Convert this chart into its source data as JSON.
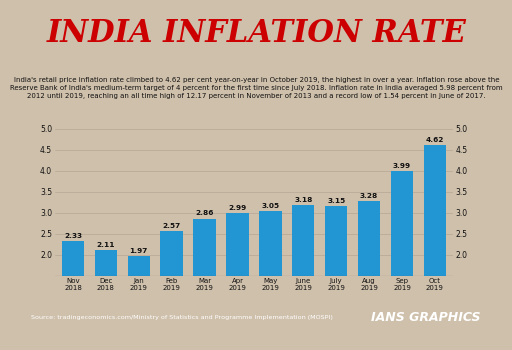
{
  "title": "INDIA INFLATION RATE",
  "subtitle_lines": [
    "India's retail price inflation rate climbed to 4.62 per cent year-on-year in October 2019, the highest in over a year. Inflation rose above the",
    "Reserve Bank of India's medium-term target of 4 percent for the first time since July 2018. Inflation rate in India averaged 5.98 percent from",
    "2012 until 2019, reaching an all time high of 12.17 percent in November of 2013 and a record low of 1.54 percent in June of 2017."
  ],
  "categories": [
    "Nov\n2018",
    "Dec\n2018",
    "Jan\n2019",
    "Feb\n2019",
    "Mar\n2019",
    "Apr\n2019",
    "May\n2019",
    "June\n2019",
    "July\n2019",
    "Aug\n2019",
    "Sep\n2019",
    "Oct\n2019"
  ],
  "values": [
    2.33,
    2.11,
    1.97,
    2.57,
    2.86,
    2.99,
    3.05,
    3.18,
    3.15,
    3.28,
    3.99,
    4.62
  ],
  "bar_color": "#2196d3",
  "background_color": "#cfc0ab",
  "title_color": "#cc0000",
  "subtitle_color": "#111111",
  "bar_label_color": "#111111",
  "ylim": [
    1.5,
    5.0
  ],
  "yticks": [
    2.0,
    2.5,
    3.0,
    3.5,
    4.0,
    4.5,
    5.0
  ],
  "source_text": "Source: tradingeconomics.com/Ministry of Statistics and Programme Implementation (MOSPI)",
  "source_bg": "#1a1a1a",
  "source_text_color": "#ffffff",
  "brand_text": "IANS GRAPHICS",
  "brand_bg": "#cc0000",
  "brand_text_color": "#ffffff",
  "divider_color": "#888888"
}
